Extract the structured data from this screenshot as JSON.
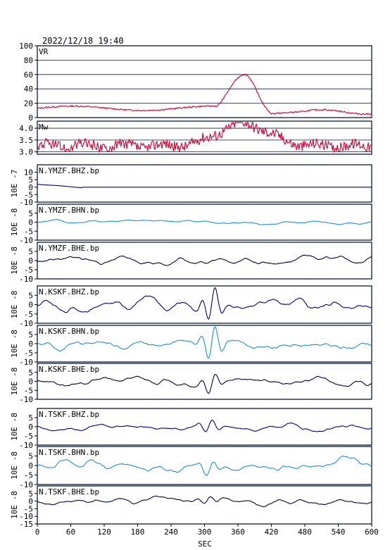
{
  "header": {
    "timestamp": "2022/12/18 19:40"
  },
  "chart_data": {
    "type": "line",
    "xlabel": "SEC",
    "xlim": [
      0,
      600
    ],
    "x_ticks": [
      "0",
      "60",
      "120",
      "180",
      "240",
      "300",
      "360",
      "420",
      "480",
      "540",
      "600"
    ],
    "panels": [
      {
        "label": "VR",
        "ylim": [
          0,
          100
        ],
        "y_ticks": [
          "100",
          "80",
          "60",
          "40",
          "20",
          "0"
        ],
        "color": "#cc0033",
        "shape": {
          "kind": "vr",
          "base": 13,
          "peak_x": 372,
          "peak": 60
        },
        "grid": true
      },
      {
        "label": "Mw",
        "ylim": [
          2.9,
          4.3
        ],
        "y_ticks": [
          "4.0",
          "3.5",
          "3.0"
        ],
        "color": "#cc0033",
        "shape": {
          "kind": "mw",
          "base": 3.25,
          "peak_x": 370,
          "peak": 4.2
        },
        "grid": true
      },
      {
        "label": "N.YMZF.BHZ.bp",
        "ylim": [
          -10,
          15
        ],
        "y_ticks": [
          "10",
          "5",
          "0",
          "-5",
          "-10"
        ],
        "yunit": "10E -7",
        "color": "#000080",
        "shape": {
          "kind": "flat",
          "start": 2,
          "amp": 0.3
        }
      },
      {
        "label": "N.YMZF.BHN.bp",
        "ylim": [
          -10,
          10
        ],
        "y_ticks": [
          "5",
          "0",
          "-5",
          "-10"
        ],
        "yunit": "10E -8",
        "color": "#1a8fd6",
        "shape": {
          "kind": "noise",
          "amp": 0.4
        }
      },
      {
        "label": "N.YMZF.BHE.bp",
        "ylim": [
          -10,
          10
        ],
        "y_ticks": [
          "5",
          "0",
          "-5",
          "-10"
        ],
        "yunit": "10E -8",
        "color": "#000040",
        "shape": {
          "kind": "noise",
          "amp": 0.9
        }
      },
      {
        "label": "N.KSKF.BHZ.bp",
        "ylim": [
          -10,
          10
        ],
        "y_ticks": [
          "5",
          "0",
          "-5",
          "-10"
        ],
        "yunit": "10E -8",
        "color": "#000080",
        "shape": {
          "kind": "event",
          "amp": 1.3,
          "ex": 313,
          "ea": 10
        }
      },
      {
        "label": "N.KSKF.BHN.bp",
        "ylim": [
          -10,
          10
        ],
        "y_ticks": [
          "5",
          "0",
          "-5",
          "-10"
        ],
        "yunit": "10E -8",
        "color": "#1a8fd6",
        "shape": {
          "kind": "event",
          "amp": 1.1,
          "ex": 313,
          "ea": 9
        }
      },
      {
        "label": "N.KSKF.BHE.bp",
        "ylim": [
          -10,
          10
        ],
        "y_ticks": [
          "5",
          "0",
          "-5",
          "-10"
        ],
        "yunit": "10E -8",
        "color": "#000040",
        "shape": {
          "kind": "event",
          "amp": 1.0,
          "ex": 313,
          "ea": 6
        }
      },
      {
        "label": "N.TSKF.BHZ.bp",
        "ylim": [
          -10,
          10
        ],
        "y_ticks": [
          "5",
          "0",
          "-5",
          "-10"
        ],
        "yunit": "10E -8",
        "color": "#000080",
        "shape": {
          "kind": "event",
          "amp": 0.7,
          "ex": 308,
          "ea": 3.5
        }
      },
      {
        "label": "N.TSKF.BHN.bp",
        "ylim": [
          -10,
          10
        ],
        "y_ticks": [
          "5",
          "0",
          "-5",
          "-10"
        ],
        "yunit": "10E -8",
        "color": "#1a8fd6",
        "shape": {
          "kind": "event",
          "amp": 1.0,
          "ex": 310,
          "ea": 4
        }
      },
      {
        "label": "N.TSKF.BHE.bp",
        "ylim": [
          -15,
          10
        ],
        "y_ticks": [
          "5",
          "0",
          "-5",
          "-10",
          "-15"
        ],
        "yunit": "10E -8",
        "color": "#000040",
        "shape": {
          "kind": "event",
          "amp": 0.8,
          "ex": 305,
          "ea": 2.5
        }
      }
    ]
  }
}
